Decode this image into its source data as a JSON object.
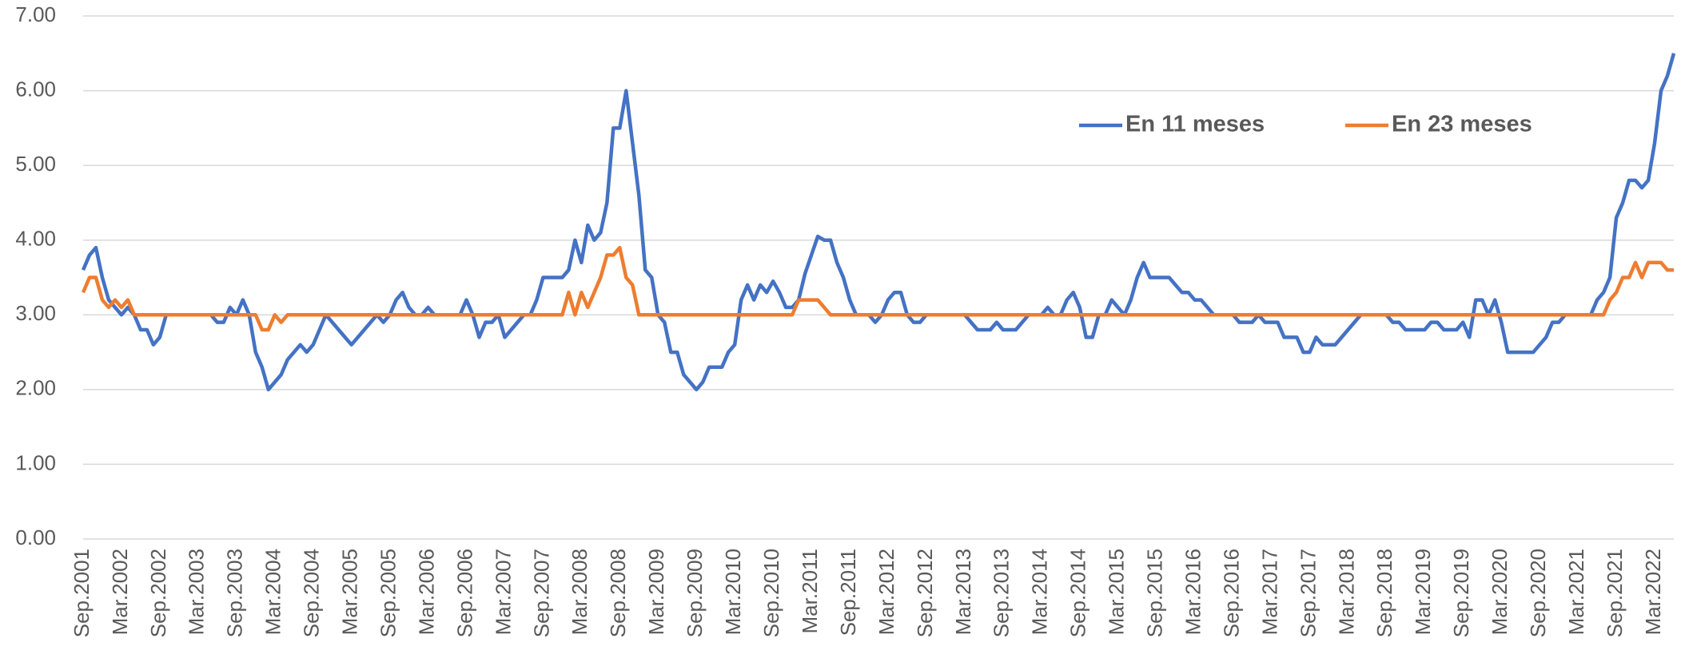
{
  "chart_data": {
    "type": "line",
    "categories": [
      "Sep.2001",
      null,
      null,
      null,
      null,
      null,
      "Mar.2002",
      null,
      null,
      null,
      null,
      null,
      "Sep.2002",
      null,
      null,
      null,
      null,
      null,
      "Mar.2003",
      null,
      null,
      null,
      null,
      null,
      "Sep.2003",
      null,
      null,
      null,
      null,
      null,
      "Mar.2004",
      null,
      null,
      null,
      null,
      null,
      "Sep.2004",
      null,
      null,
      null,
      null,
      null,
      "Mar.2005",
      null,
      null,
      null,
      null,
      null,
      "Sep.2005",
      null,
      null,
      null,
      null,
      null,
      "Mar.2006",
      null,
      null,
      null,
      null,
      null,
      "Sep.2006",
      null,
      null,
      null,
      null,
      null,
      "Mar.2007",
      null,
      null,
      null,
      null,
      null,
      "Sep.2007",
      null,
      null,
      null,
      null,
      null,
      "Mar.2008",
      null,
      null,
      null,
      null,
      null,
      "Sep.2008",
      null,
      null,
      null,
      null,
      null,
      "Mar.2009",
      null,
      null,
      null,
      null,
      null,
      "Sep.2009",
      null,
      null,
      null,
      null,
      null,
      "Mar.2010",
      null,
      null,
      null,
      null,
      null,
      "Sep.2010",
      null,
      null,
      null,
      null,
      null,
      "Mar.2011",
      null,
      null,
      null,
      null,
      null,
      "Sep.2011",
      null,
      null,
      null,
      null,
      null,
      "Mar.2012",
      null,
      null,
      null,
      null,
      null,
      "Sep.2012",
      null,
      null,
      null,
      null,
      null,
      "Mar.2013",
      null,
      null,
      null,
      null,
      null,
      "Sep.2013",
      null,
      null,
      null,
      null,
      null,
      "Mar.2014",
      null,
      null,
      null,
      null,
      null,
      "Sep.2014",
      null,
      null,
      null,
      null,
      null,
      "Mar.2015",
      null,
      null,
      null,
      null,
      null,
      "Sep.2015",
      null,
      null,
      null,
      null,
      null,
      "Mar.2016",
      null,
      null,
      null,
      null,
      null,
      "Sep.2016",
      null,
      null,
      null,
      null,
      null,
      "Mar.2017",
      null,
      null,
      null,
      null,
      null,
      "Sep.2017",
      null,
      null,
      null,
      null,
      null,
      "Mar.2018",
      null,
      null,
      null,
      null,
      null,
      "Sep.2018",
      null,
      null,
      null,
      null,
      null,
      "Mar.2019",
      null,
      null,
      null,
      null,
      null,
      "Sep.2019",
      null,
      null,
      null,
      null,
      null,
      "Mar.2020",
      null,
      null,
      null,
      null,
      null,
      "Sep.2020",
      null,
      null,
      null,
      null,
      null,
      "Mar.2021",
      null,
      null,
      null,
      null,
      null,
      "Sep.2021",
      null,
      null,
      null,
      null,
      null,
      "Mar.2022",
      null,
      null,
      null
    ],
    "series": [
      {
        "name": "En 11 meses",
        "color": "#4472c4",
        "values": [
          3.6,
          3.8,
          3.9,
          3.5,
          3.2,
          3.1,
          3.0,
          3.1,
          3.0,
          2.8,
          2.8,
          2.6,
          2.7,
          3.0,
          3.0,
          3.0,
          3.0,
          3.0,
          3.0,
          3.0,
          3.0,
          2.9,
          2.9,
          3.1,
          3.0,
          3.2,
          3.0,
          2.5,
          2.3,
          2.0,
          2.1,
          2.2,
          2.4,
          2.5,
          2.6,
          2.5,
          2.6,
          2.8,
          3.0,
          2.9,
          2.8,
          2.7,
          2.6,
          2.7,
          2.8,
          2.9,
          3.0,
          2.9,
          3.0,
          3.2,
          3.3,
          3.1,
          3.0,
          3.0,
          3.1,
          3.0,
          3.0,
          3.0,
          3.0,
          3.0,
          3.2,
          3.0,
          2.7,
          2.9,
          2.9,
          3.0,
          2.7,
          2.8,
          2.9,
          3.0,
          3.0,
          3.2,
          3.5,
          3.5,
          3.5,
          3.5,
          3.6,
          4.0,
          3.7,
          4.2,
          4.0,
          4.1,
          4.5,
          5.5,
          5.5,
          6.0,
          5.3,
          4.6,
          3.6,
          3.5,
          3.0,
          2.9,
          2.5,
          2.5,
          2.2,
          2.1,
          2.0,
          2.1,
          2.3,
          2.3,
          2.3,
          2.5,
          2.6,
          3.2,
          3.4,
          3.2,
          3.4,
          3.3,
          3.45,
          3.3,
          3.1,
          3.1,
          3.2,
          3.55,
          3.8,
          4.05,
          4.0,
          4.0,
          3.7,
          3.5,
          3.2,
          3.0,
          3.0,
          3.0,
          2.9,
          3.0,
          3.2,
          3.3,
          3.3,
          3.0,
          2.9,
          2.9,
          3.0,
          3.0,
          3.0,
          3.0,
          3.0,
          3.0,
          3.0,
          2.9,
          2.8,
          2.8,
          2.8,
          2.9,
          2.8,
          2.8,
          2.8,
          2.9,
          3.0,
          3.0,
          3.0,
          3.1,
          3.0,
          3.0,
          3.2,
          3.3,
          3.1,
          2.7,
          2.7,
          3.0,
          3.0,
          3.2,
          3.1,
          3.0,
          3.2,
          3.5,
          3.7,
          3.5,
          3.5,
          3.5,
          3.5,
          3.4,
          3.3,
          3.3,
          3.2,
          3.2,
          3.1,
          3.0,
          3.0,
          3.0,
          3.0,
          2.9,
          2.9,
          2.9,
          3.0,
          2.9,
          2.9,
          2.9,
          2.7,
          2.7,
          2.7,
          2.5,
          2.5,
          2.7,
          2.6,
          2.6,
          2.6,
          2.7,
          2.8,
          2.9,
          3.0,
          3.0,
          3.0,
          3.0,
          3.0,
          2.9,
          2.9,
          2.8,
          2.8,
          2.8,
          2.8,
          2.9,
          2.9,
          2.8,
          2.8,
          2.8,
          2.9,
          2.7,
          3.2,
          3.2,
          3.0,
          3.2,
          2.9,
          2.5,
          2.5,
          2.5,
          2.5,
          2.5,
          2.6,
          2.7,
          2.9,
          2.9,
          3.0,
          3.0,
          3.0,
          3.0,
          3.0,
          3.2,
          3.3,
          3.5,
          4.3,
          4.5,
          4.8,
          4.8,
          4.7,
          4.8,
          5.3,
          6.0,
          6.2,
          6.5
        ]
      },
      {
        "name": "En 23 meses",
        "color": "#ed7d31",
        "values": [
          3.3,
          3.5,
          3.5,
          3.2,
          3.1,
          3.2,
          3.1,
          3.2,
          3.0,
          3.0,
          3.0,
          3.0,
          3.0,
          3.0,
          3.0,
          3.0,
          3.0,
          3.0,
          3.0,
          3.0,
          3.0,
          3.0,
          3.0,
          3.0,
          3.0,
          3.0,
          3.0,
          3.0,
          2.8,
          2.8,
          3.0,
          2.9,
          3.0,
          3.0,
          3.0,
          3.0,
          3.0,
          3.0,
          3.0,
          3.0,
          3.0,
          3.0,
          3.0,
          3.0,
          3.0,
          3.0,
          3.0,
          3.0,
          3.0,
          3.0,
          3.0,
          3.0,
          3.0,
          3.0,
          3.0,
          3.0,
          3.0,
          3.0,
          3.0,
          3.0,
          3.0,
          3.0,
          3.0,
          3.0,
          3.0,
          3.0,
          3.0,
          3.0,
          3.0,
          3.0,
          3.0,
          3.0,
          3.0,
          3.0,
          3.0,
          3.0,
          3.3,
          3.0,
          3.3,
          3.1,
          3.3,
          3.5,
          3.8,
          3.8,
          3.9,
          3.5,
          3.4,
          3.0,
          3.0,
          3.0,
          3.0,
          3.0,
          3.0,
          3.0,
          3.0,
          3.0,
          3.0,
          3.0,
          3.0,
          3.0,
          3.0,
          3.0,
          3.0,
          3.0,
          3.0,
          3.0,
          3.0,
          3.0,
          3.0,
          3.0,
          3.0,
          3.0,
          3.2,
          3.2,
          3.2,
          3.2,
          3.1,
          3.0,
          3.0,
          3.0,
          3.0,
          3.0,
          3.0,
          3.0,
          3.0,
          3.0,
          3.0,
          3.0,
          3.0,
          3.0,
          3.0,
          3.0,
          3.0,
          3.0,
          3.0,
          3.0,
          3.0,
          3.0,
          3.0,
          3.0,
          3.0,
          3.0,
          3.0,
          3.0,
          3.0,
          3.0,
          3.0,
          3.0,
          3.0,
          3.0,
          3.0,
          3.0,
          3.0,
          3.0,
          3.0,
          3.0,
          3.0,
          3.0,
          3.0,
          3.0,
          3.0,
          3.0,
          3.0,
          3.0,
          3.0,
          3.0,
          3.0,
          3.0,
          3.0,
          3.0,
          3.0,
          3.0,
          3.0,
          3.0,
          3.0,
          3.0,
          3.0,
          3.0,
          3.0,
          3.0,
          3.0,
          3.0,
          3.0,
          3.0,
          3.0,
          3.0,
          3.0,
          3.0,
          3.0,
          3.0,
          3.0,
          3.0,
          3.0,
          3.0,
          3.0,
          3.0,
          3.0,
          3.0,
          3.0,
          3.0,
          3.0,
          3.0,
          3.0,
          3.0,
          3.0,
          3.0,
          3.0,
          3.0,
          3.0,
          3.0,
          3.0,
          3.0,
          3.0,
          3.0,
          3.0,
          3.0,
          3.0,
          3.0,
          3.0,
          3.0,
          3.0,
          3.0,
          3.0,
          3.0,
          3.0,
          3.0,
          3.0,
          3.0,
          3.0,
          3.0,
          3.0,
          3.0,
          3.0,
          3.0,
          3.0,
          3.0,
          3.0,
          3.0,
          3.0,
          3.2,
          3.3,
          3.5,
          3.5,
          3.7,
          3.5,
          3.7,
          3.7,
          3.7,
          3.6,
          3.6
        ]
      }
    ],
    "ylim": [
      0,
      7
    ],
    "yticks": [
      {
        "value": 0,
        "label": "0.00"
      },
      {
        "value": 1,
        "label": "1.00"
      },
      {
        "value": 2,
        "label": "2.00"
      },
      {
        "value": 3,
        "label": "3.00"
      },
      {
        "value": 4,
        "label": "4.00"
      },
      {
        "value": 5,
        "label": "5.00"
      },
      {
        "value": 6,
        "label": "6.00"
      },
      {
        "value": 7,
        "label": "7.00"
      }
    ],
    "grid": true,
    "legend": "top right"
  }
}
